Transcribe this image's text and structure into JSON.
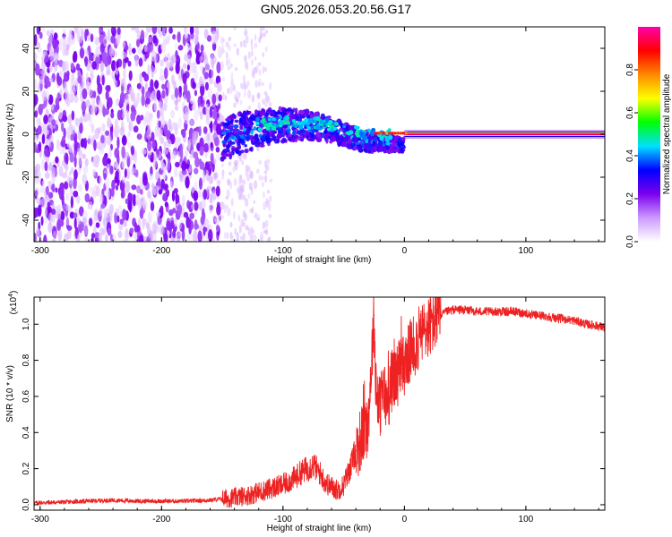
{
  "title": "GN05.2026.053.20.56.G17",
  "chart_data": [
    {
      "type": "heatmap",
      "name": "spectrogram",
      "xlabel": "Height of straight line (km)",
      "ylabel": "Frequency (Hz)",
      "xlim": [
        -305,
        165
      ],
      "ylim": [
        -50,
        50
      ],
      "xticks": [
        -300,
        -200,
        -100,
        0,
        100
      ],
      "xtick_labels": [
        "-300",
        "-200",
        "-100",
        "0",
        "100"
      ],
      "yticks": [
        -40,
        -20,
        0,
        20,
        40
      ],
      "ytick_labels": [
        "-40",
        "-20",
        "0",
        "20",
        "40"
      ],
      "colorbar": {
        "label": "Normalized spectral amplitude",
        "range": [
          0,
          1
        ],
        "ticks": [
          0.0,
          0.2,
          0.4,
          0.6,
          0.8
        ],
        "tick_labels": [
          "0.0",
          "0.2",
          "0.4",
          "0.6",
          "0.8"
        ],
        "colors": [
          "#ffffff",
          "#cc99ff",
          "#7a00ee",
          "#0000ff",
          "#00e0ff",
          "#00ff00",
          "#ffff00",
          "#ff8800",
          "#ff0000",
          "#ff00aa"
        ]
      },
      "features": [
        {
          "region": "noise",
          "x_range": [
            -305,
            -150
          ],
          "amplitude": 0.15,
          "description_level": "scattered"
        },
        {
          "region": "noise_fade",
          "x_range": [
            -150,
            -110
          ],
          "amplitude": 0.05
        },
        {
          "region": "signal_band",
          "x_range": [
            -150,
            0
          ],
          "freq_center": [
            -2,
            5
          ],
          "amplitude_range": [
            0.2,
            0.45
          ]
        },
        {
          "region": "tone",
          "x_range": [
            0,
            165
          ],
          "freq": 0,
          "amplitude": 1.0
        }
      ]
    },
    {
      "type": "line",
      "name": "snr",
      "xlabel": "Height of straight line (km)",
      "ylabel": "SNR (10 * v/v)",
      "scale_label": "(x10",
      "scale_exponent": "4",
      "xlim": [
        -305,
        165
      ],
      "ylim": [
        -0.03,
        1.15
      ],
      "xticks": [
        -300,
        -200,
        -100,
        0,
        100
      ],
      "xtick_labels": [
        "-300",
        "-200",
        "-100",
        "0",
        "100"
      ],
      "yticks": [
        0.0,
        0.2,
        0.4,
        0.6,
        0.8,
        1.0
      ],
      "ytick_labels": [
        "0.0",
        "0.2",
        "0.4",
        "0.6",
        "0.8",
        "1.0"
      ],
      "color": "#ee2222",
      "x": [
        -305,
        -280,
        -260,
        -240,
        -220,
        -200,
        -180,
        -160,
        -140,
        -130,
        -120,
        -110,
        -100,
        -90,
        -85,
        -80,
        -75,
        -70,
        -65,
        -60,
        -55,
        -50,
        -45,
        -40,
        -35,
        -30,
        -27,
        -25,
        -24,
        -22,
        -20,
        -18,
        -16,
        -14,
        -12,
        -10,
        -8,
        -6,
        -4,
        -2,
        0,
        5,
        10,
        15,
        20,
        25,
        30,
        35,
        40,
        50,
        60,
        70,
        80,
        90,
        100,
        105,
        110,
        120,
        130,
        140,
        150,
        160,
        165
      ],
      "y": [
        0.01,
        0.015,
        0.02,
        0.025,
        0.02,
        0.02,
        0.02,
        0.025,
        0.04,
        0.05,
        0.07,
        0.09,
        0.11,
        0.15,
        0.18,
        0.2,
        0.22,
        0.18,
        0.12,
        0.1,
        0.08,
        0.11,
        0.2,
        0.3,
        0.38,
        0.45,
        0.8,
        1.05,
        0.75,
        0.55,
        0.55,
        0.6,
        0.62,
        0.52,
        0.65,
        0.7,
        0.7,
        0.72,
        0.74,
        0.75,
        0.78,
        0.85,
        0.9,
        0.95,
        0.99,
        1.02,
        1.05,
        1.07,
        1.08,
        1.08,
        1.07,
        1.07,
        1.07,
        1.07,
        1.06,
        1.05,
        1.05,
        1.04,
        1.03,
        1.02,
        1.0,
        0.99,
        0.98
      ]
    }
  ]
}
